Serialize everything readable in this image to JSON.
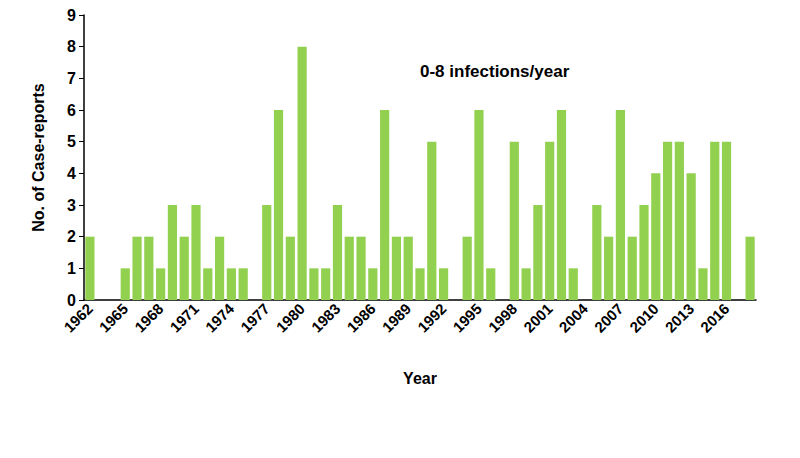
{
  "chart_data": {
    "type": "bar",
    "annotation": "0-8 infections/year",
    "x_label": "Year",
    "y_label": "No. of Case-reports",
    "categories": [
      "1962",
      null,
      null,
      "1965",
      null,
      null,
      "1968",
      null,
      null,
      "1971",
      null,
      null,
      "1974",
      null,
      null,
      "1977",
      null,
      null,
      "1980",
      null,
      null,
      "1983",
      null,
      null,
      "1986",
      null,
      null,
      "1989",
      null,
      null,
      "1992",
      null,
      null,
      "1995",
      null,
      null,
      "1998",
      null,
      null,
      "2001",
      null,
      null,
      "2004",
      null,
      null,
      "2007",
      null,
      null,
      "2010",
      null,
      null,
      "2013",
      null,
      null,
      "2016",
      null,
      null
    ],
    "values": [
      2,
      0,
      0,
      1,
      2,
      2,
      1,
      3,
      2,
      3,
      1,
      2,
      1,
      1,
      0,
      3,
      6,
      2,
      8,
      1,
      1,
      3,
      2,
      2,
      1,
      6,
      2,
      2,
      1,
      5,
      1,
      0,
      2,
      6,
      1,
      0,
      5,
      1,
      3,
      5,
      6,
      1,
      0,
      3,
      2,
      6,
      2,
      3,
      4,
      5,
      5,
      4,
      1,
      5,
      5,
      0,
      2
    ],
    "color": "#92d050",
    "ylim": [
      0,
      9
    ],
    "yticks": [
      0,
      1,
      2,
      3,
      4,
      5,
      6,
      7,
      8,
      9
    ],
    "grid": false
  }
}
